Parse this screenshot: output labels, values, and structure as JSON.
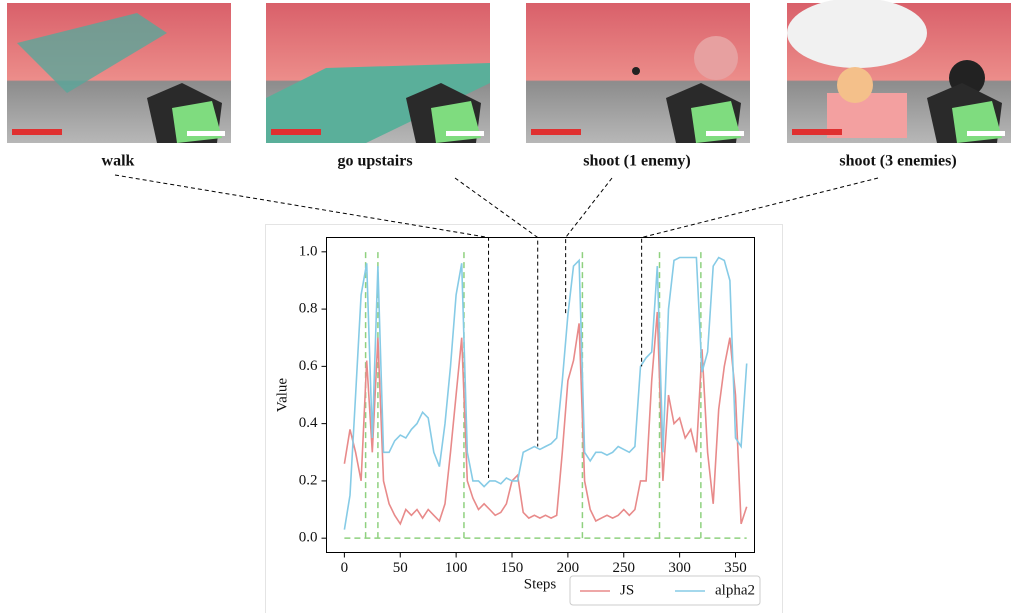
{
  "chart_data": {
    "type": "line",
    "x_label": "Steps",
    "y_label": "Value",
    "x": [
      0,
      5,
      10,
      15,
      20,
      25,
      30,
      35,
      40,
      45,
      50,
      55,
      60,
      65,
      70,
      75,
      80,
      85,
      90,
      95,
      100,
      105,
      110,
      115,
      120,
      125,
      130,
      135,
      140,
      145,
      150,
      155,
      160,
      165,
      170,
      175,
      180,
      185,
      190,
      195,
      200,
      205,
      210,
      215,
      220,
      225,
      230,
      235,
      240,
      245,
      250,
      255,
      260,
      265,
      270,
      275,
      280,
      285,
      290,
      295,
      300,
      305,
      310,
      315,
      320,
      325,
      330,
      335,
      340,
      345,
      350,
      355,
      360
    ],
    "series": [
      {
        "name": "JS",
        "color": "#e88a8a",
        "values": [
          0.26,
          0.38,
          0.3,
          0.2,
          0.62,
          0.3,
          0.7,
          0.2,
          0.12,
          0.08,
          0.05,
          0.1,
          0.08,
          0.1,
          0.07,
          0.1,
          0.08,
          0.06,
          0.12,
          0.3,
          0.5,
          0.7,
          0.2,
          0.14,
          0.1,
          0.12,
          0.1,
          0.08,
          0.09,
          0.12,
          0.2,
          0.22,
          0.09,
          0.07,
          0.08,
          0.07,
          0.08,
          0.07,
          0.08,
          0.3,
          0.55,
          0.62,
          0.75,
          0.2,
          0.1,
          0.06,
          0.07,
          0.08,
          0.07,
          0.08,
          0.1,
          0.08,
          0.1,
          0.2,
          0.2,
          0.55,
          0.79,
          0.2,
          0.5,
          0.4,
          0.42,
          0.35,
          0.38,
          0.3,
          0.66,
          0.3,
          0.12,
          0.45,
          0.6,
          0.7,
          0.5,
          0.05,
          0.11
        ]
      },
      {
        "name": "alpha2",
        "color": "#86cbe6",
        "values": [
          0.03,
          0.15,
          0.5,
          0.85,
          0.96,
          0.35,
          0.95,
          0.3,
          0.3,
          0.34,
          0.36,
          0.35,
          0.38,
          0.4,
          0.44,
          0.42,
          0.3,
          0.25,
          0.4,
          0.6,
          0.85,
          0.96,
          0.3,
          0.2,
          0.2,
          0.18,
          0.2,
          0.2,
          0.19,
          0.21,
          0.2,
          0.2,
          0.3,
          0.31,
          0.32,
          0.31,
          0.32,
          0.33,
          0.35,
          0.55,
          0.78,
          0.95,
          0.97,
          0.3,
          0.27,
          0.3,
          0.3,
          0.29,
          0.3,
          0.32,
          0.31,
          0.3,
          0.32,
          0.6,
          0.63,
          0.65,
          0.95,
          0.3,
          0.8,
          0.97,
          0.98,
          0.98,
          0.98,
          0.98,
          0.58,
          0.65,
          0.95,
          0.98,
          0.97,
          0.9,
          0.35,
          0.32,
          0.61
        ]
      }
    ],
    "events": {
      "x": [
        19,
        30,
        107,
        213,
        282,
        319
      ],
      "range": [
        0,
        1
      ],
      "baseline": [
        0,
        360
      ],
      "color": "#8fd17f"
    },
    "xlim": [
      -16,
      367
    ],
    "ylim": [
      -0.05,
      1.05
    ],
    "xticks": [
      0,
      50,
      100,
      150,
      200,
      250,
      300,
      350
    ],
    "yticks": [
      {
        "value": 0,
        "label": "0.0"
      },
      {
        "value": 0.2,
        "label": "0.2"
      },
      {
        "value": 0.4,
        "label": "0.4"
      },
      {
        "value": 0.6,
        "label": "0.6"
      },
      {
        "value": 0.8,
        "label": "0.8"
      },
      {
        "value": 1,
        "label": "1.0"
      }
    ],
    "legend": "lower right",
    "annotations": [
      {
        "text": "walk",
        "x": 129,
        "y": 0.21
      },
      {
        "text": "go upstairs",
        "x": 173,
        "y": 0.32
      },
      {
        "text": "shoot (1 enemy)",
        "x": 198,
        "y": 0.78
      },
      {
        "text": "shoot (3 enemies)",
        "x": 266,
        "y": 0.6
      }
    ]
  }
}
